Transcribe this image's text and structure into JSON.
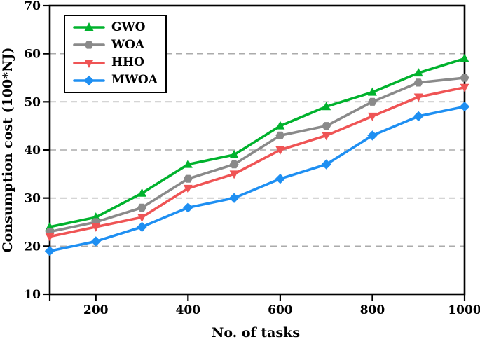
{
  "chart_data": {
    "type": "line",
    "title": "",
    "xlabel": "No. of tasks",
    "ylabel": "Consumption cost (100*NJ)",
    "x": [
      100,
      200,
      300,
      400,
      500,
      600,
      700,
      800,
      900,
      1000
    ],
    "series": [
      {
        "name": "GWO",
        "color": "#00B22D",
        "marker": "triangle-up",
        "values": [
          24,
          26,
          31,
          37,
          39,
          45,
          49,
          52,
          56,
          59
        ]
      },
      {
        "name": "WOA",
        "color": "#8A8A8A",
        "marker": "hexagon",
        "values": [
          23,
          25,
          28,
          34,
          37,
          43,
          45,
          50,
          54,
          55
        ]
      },
      {
        "name": "HHO",
        "color": "#EF5455",
        "marker": "triangle-down",
        "values": [
          22,
          24,
          26,
          32,
          35,
          40,
          43,
          47,
          51,
          53
        ]
      },
      {
        "name": "MWOA",
        "color": "#1E8FF2",
        "marker": "diamond",
        "values": [
          19,
          21,
          24,
          28,
          30,
          34,
          37,
          43,
          47,
          49
        ]
      }
    ],
    "xlim": [
      100,
      1000
    ],
    "ylim": [
      10,
      70
    ],
    "x_ticks": [
      200,
      400,
      600,
      800,
      1000
    ],
    "x_minor_ticks": [
      100
    ],
    "y_ticks": [
      10,
      20,
      30,
      40,
      50,
      60,
      70
    ],
    "gridlines": {
      "y_values": [
        20,
        30,
        40,
        50,
        60
      ],
      "color": "#ABABAB",
      "style": "dashed"
    },
    "legend_position": "top-left",
    "axis_color": "#000000",
    "background_color": "#ffffff"
  }
}
